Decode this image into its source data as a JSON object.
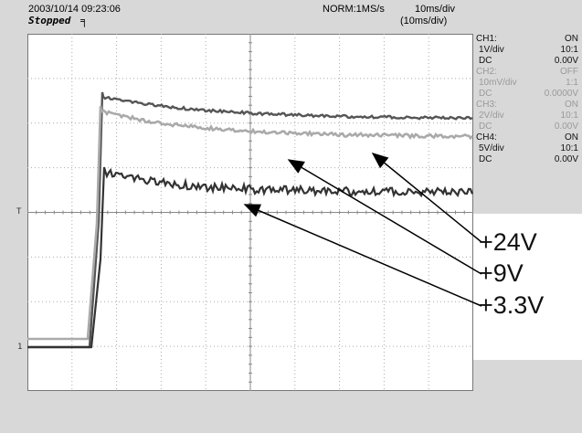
{
  "header": {
    "timestamp": "2003/10/14  09:23:06",
    "status": "Stopped",
    "mode": "NORM:1MS/s",
    "timebase": "10ms/div",
    "timebase_sub": "(10ms/div)"
  },
  "channels": [
    {
      "name": "CH1:",
      "state": "ON",
      "scale": "1V/div",
      "probe": "10:1",
      "coupling": "DC",
      "offset": "0.00V",
      "active": true
    },
    {
      "name": "CH2:",
      "state": "OFF",
      "scale": "10mV/div",
      "probe": "1:1",
      "coupling": "DC",
      "offset": "0.0000V",
      "active": false
    },
    {
      "name": "CH3:",
      "state": "ON",
      "scale": "2V/div",
      "probe": "10:1",
      "coupling": "DC",
      "offset": "0.00V",
      "active": false
    },
    {
      "name": "CH4:",
      "state": "ON",
      "scale": "5V/div",
      "probe": "10:1",
      "coupling": "DC",
      "offset": "0.00V",
      "active": true
    }
  ],
  "annotations": [
    "+24V",
    "+9V",
    "+3.3V"
  ],
  "trigger_marker": "T",
  "ground_marker": "1"
}
